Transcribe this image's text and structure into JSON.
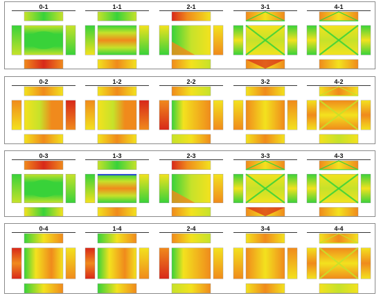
{
  "figure": {
    "rows": [
      {
        "id": "row-1",
        "cells": [
          {
            "label": "0-1",
            "pattern": "ends-hot"
          },
          {
            "label": "1-1",
            "pattern": "uniform-green"
          },
          {
            "label": "2-1",
            "pattern": "corner-hot"
          },
          {
            "label": "3-1",
            "pattern": "x-diag-top"
          },
          {
            "label": "4-1",
            "pattern": "x-diag"
          }
        ]
      },
      {
        "id": "row-2",
        "cells": [
          {
            "label": "0-2",
            "pattern": "side-hot"
          },
          {
            "label": "1-2",
            "pattern": "side-hot-right"
          },
          {
            "label": "2-2",
            "pattern": "yellow-gradient"
          },
          {
            "label": "3-2",
            "pattern": "yellow-warm"
          },
          {
            "label": "4-2",
            "pattern": "x-diag-warm"
          }
        ]
      },
      {
        "id": "row-3",
        "cells": [
          {
            "label": "0-3",
            "pattern": "ends-hot-top"
          },
          {
            "label": "1-3",
            "pattern": "band-blue"
          },
          {
            "label": "2-3",
            "pattern": "corner-hot"
          },
          {
            "label": "3-3",
            "pattern": "x-diag-top"
          },
          {
            "label": "4-3",
            "pattern": "x-diag"
          }
        ]
      },
      {
        "id": "row-4",
        "cells": [
          {
            "label": "0-4",
            "pattern": "side-hot-left"
          },
          {
            "label": "1-4",
            "pattern": "side-hot-left2"
          },
          {
            "label": "2-4",
            "pattern": "yellow-gradient-left"
          },
          {
            "label": "3-4",
            "pattern": "yellow-warm-left"
          },
          {
            "label": "4-4",
            "pattern": "x-diag-warm"
          }
        ]
      }
    ]
  },
  "colors": {
    "red": "#d8281a",
    "orange": "#f08a1c",
    "yellow": "#f3e21e",
    "yellow_green": "#c6e22a",
    "green": "#38d23a",
    "blue": "#2244dd",
    "panel_border": "#8a8a8a",
    "white_gap": "#ffffff"
  }
}
